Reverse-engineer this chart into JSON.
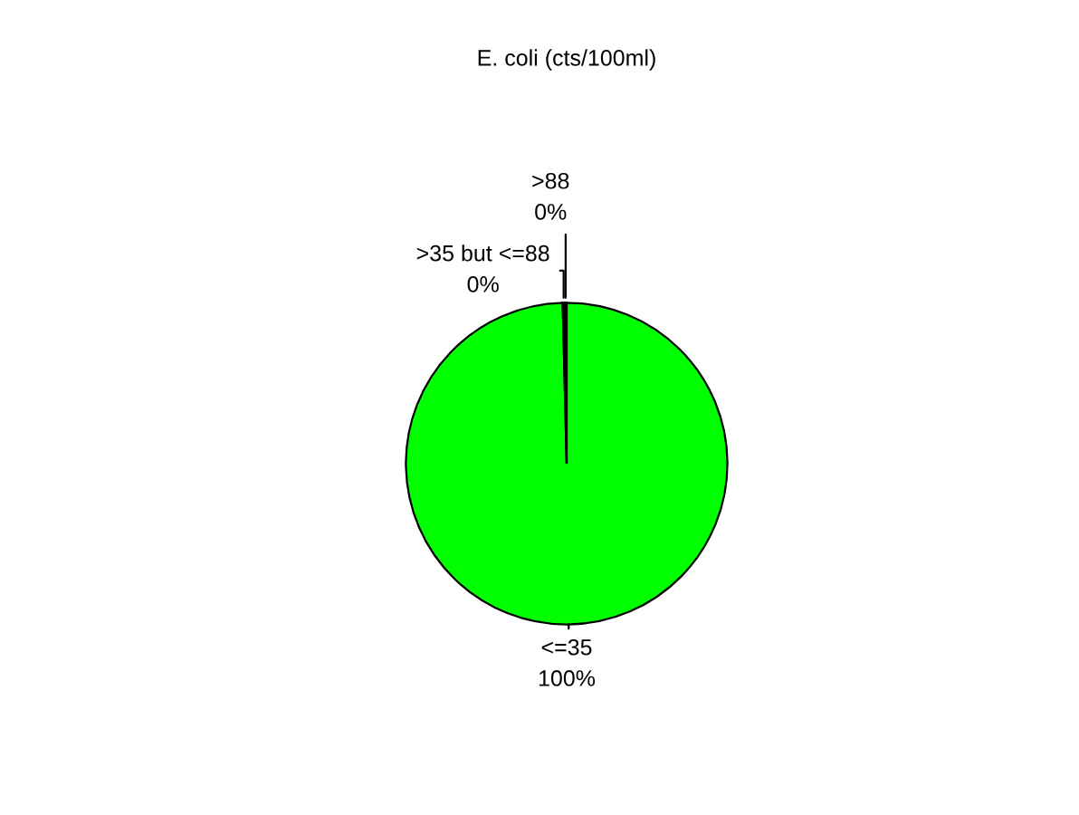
{
  "chart_data": {
    "type": "pie",
    "title": "E. coli (cts/100ml)",
    "categories": [
      "<=35",
      ">35 but <=88",
      ">88"
    ],
    "values": [
      99.6,
      0.2,
      0.2
    ],
    "value_labels": [
      "100%",
      "0%",
      "0%"
    ],
    "colors": [
      "#00ff00",
      "#ffcc00",
      "#ff0000"
    ],
    "legend": false
  }
}
